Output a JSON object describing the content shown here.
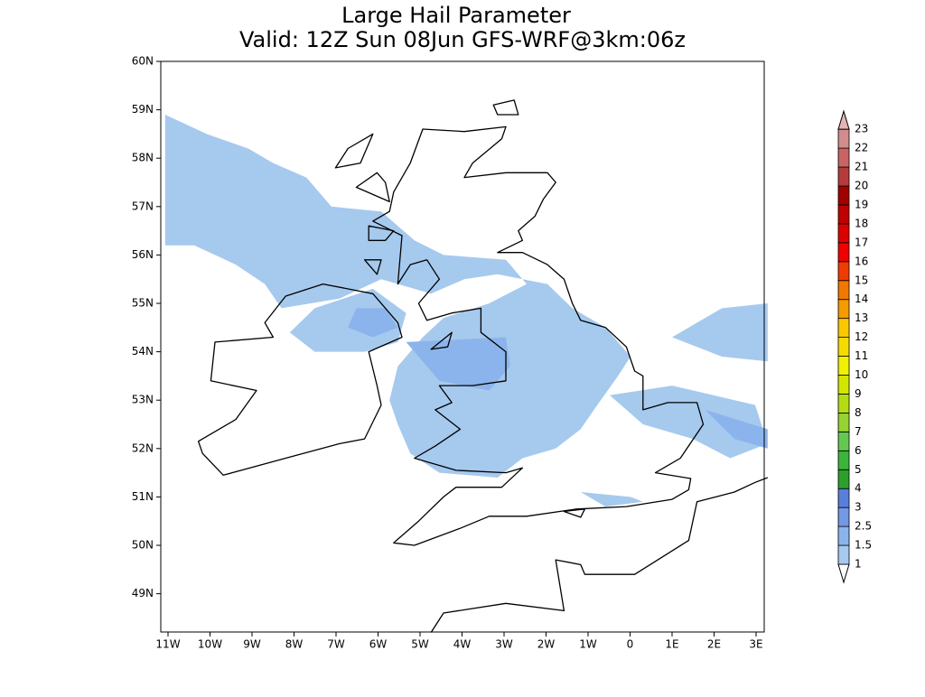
{
  "title": "Large Hail Parameter",
  "subtitle": "Valid: 12Z Sun 08Jun GFS-WRF@3km:06z",
  "lat_labels": [
    "60N",
    "59N",
    "58N",
    "57N",
    "56N",
    "55N",
    "54N",
    "53N",
    "52N",
    "51N",
    "50N",
    "49N"
  ],
  "lon_labels": [
    "11W",
    "10W",
    "9W",
    "8W",
    "7W",
    "6W",
    "5W",
    "4W",
    "3W",
    "2W",
    "1W",
    "0",
    "1E",
    "2E",
    "3E"
  ],
  "colorbar": {
    "levels": [
      1,
      1.5,
      2.5,
      3,
      4,
      5,
      6,
      7,
      8,
      9,
      10,
      11,
      12,
      13,
      14,
      15,
      16,
      17,
      18,
      19,
      20,
      21,
      22,
      23
    ],
    "colors": [
      "#a6c9ee",
      "#8cb4ec",
      "#7598e6",
      "#5a7fd9",
      "#2ca02c",
      "#3cb43c",
      "#64c850",
      "#96d232",
      "#b4dc14",
      "#d2e600",
      "#f0f000",
      "#f5dc00",
      "#fac800",
      "#f59b00",
      "#f07800",
      "#f03c00",
      "#f00000",
      "#dc0000",
      "#be0000",
      "#a00000",
      "#b43c3c",
      "#c86464",
      "#d28c8c"
    ],
    "under_color": "#ffffff",
    "over_color": "#e6b4b4"
  }
}
